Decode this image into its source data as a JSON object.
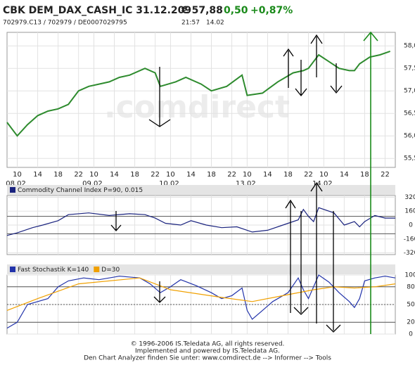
{
  "header": {
    "symbol": "CBK DEM_DAX_CASH_IC 31.12.209",
    "price": "€ 57,88",
    "change": "0,50",
    "change_pct": "+0,87%",
    "ids": "702979.C13 / 702979 / DE0007029795",
    "time": "21:57",
    "date": "14.02"
  },
  "watermark": ".comdirect",
  "footer": [
    "© 1996-2006 IS.Teledata AG, all rights reserved.",
    "Implemented and powered by IS.Teledata AG.",
    "Den Chart Analyzer finden Sie unter: www.comdirect.de --> Informer --> Tools"
  ],
  "chart_data": [
    {
      "type": "line",
      "xlim": [
        -2,
        74
      ],
      "ylim": [
        55.3,
        58.3
      ],
      "xticks": [
        {
          "value": 0,
          "label": "10"
        },
        {
          "value": 4,
          "label": "14"
        },
        {
          "value": 8,
          "label": "18"
        },
        {
          "value": 12,
          "label": "22"
        },
        {
          "value": 15,
          "label": "10"
        },
        {
          "value": 19,
          "label": "14"
        },
        {
          "value": 23,
          "label": "18"
        },
        {
          "value": 27,
          "label": "22"
        },
        {
          "value": 30,
          "label": "10"
        },
        {
          "value": 34,
          "label": "14"
        },
        {
          "value": 38,
          "label": "18"
        },
        {
          "value": 42,
          "label": "22"
        },
        {
          "value": 45,
          "label": "10"
        },
        {
          "value": 49,
          "label": "14"
        },
        {
          "value": 53,
          "label": "18"
        },
        {
          "value": 57,
          "label": "22"
        },
        {
          "value": 60,
          "label": "10"
        },
        {
          "value": 64,
          "label": "14"
        },
        {
          "value": 68,
          "label": "18"
        },
        {
          "value": 72,
          "label": "22"
        }
      ],
      "date_labels": [
        {
          "value": 0,
          "label": "08.02"
        },
        {
          "value": 15,
          "label": "09.02"
        },
        {
          "value": 30,
          "label": "10.02"
        },
        {
          "value": 45,
          "label": "13.02"
        },
        {
          "value": 60,
          "label": "14.02"
        }
      ],
      "yticks": [
        {
          "value": 58,
          "label": "58,0"
        },
        {
          "value": 57.5,
          "label": "57,5"
        },
        {
          "value": 57,
          "label": "57,0"
        },
        {
          "value": 56.5,
          "label": "56,5"
        },
        {
          "value": 56,
          "label": "56,0"
        },
        {
          "value": 55.5,
          "label": "55,5"
        }
      ],
      "series": [
        {
          "color": "#2e8b2e",
          "x": [
            -2,
            0,
            2,
            4,
            6,
            8,
            10,
            12,
            14,
            16,
            18,
            20,
            22,
            25,
            27,
            28,
            31,
            33,
            36,
            38,
            41,
            44,
            45,
            48,
            51,
            54,
            56,
            57,
            59,
            61,
            63,
            65,
            66,
            67,
            69,
            71,
            73
          ],
          "values": [
            56.3,
            56.0,
            56.25,
            56.45,
            56.55,
            56.6,
            56.7,
            57.0,
            57.1,
            57.15,
            57.2,
            57.3,
            57.35,
            57.5,
            57.4,
            57.1,
            57.2,
            57.3,
            57.15,
            57.0,
            57.1,
            57.35,
            56.9,
            56.95,
            57.2,
            57.4,
            57.45,
            57.5,
            57.8,
            57.65,
            57.5,
            57.45,
            57.45,
            57.6,
            57.75,
            57.8,
            57.88
          ]
        }
      ]
    },
    {
      "type": "line",
      "xlim": [
        -2,
        74
      ],
      "ylim": [
        -340,
        340
      ],
      "yticks": [
        320,
        160,
        0,
        -160,
        -320
      ],
      "hlines": [
        100,
        -100
      ],
      "series": [
        {
          "name": "Commodity Channel Index P=90, 0.015",
          "color": "#1a237e",
          "x": [
            -2,
            0,
            3,
            5,
            8,
            10,
            14,
            18,
            22,
            25,
            27,
            29,
            32,
            34,
            37,
            40,
            43,
            46,
            49,
            52,
            55,
            56,
            57,
            58,
            59,
            62,
            64,
            66,
            67,
            68,
            70,
            72,
            74
          ],
          "values": [
            -120,
            -90,
            -30,
            0,
            50,
            120,
            140,
            110,
            130,
            120,
            80,
            20,
            0,
            50,
            0,
            -30,
            -20,
            -80,
            -60,
            0,
            60,
            180,
            100,
            40,
            200,
            140,
            0,
            40,
            -20,
            40,
            110,
            80,
            80
          ]
        }
      ]
    },
    {
      "type": "line",
      "xlim": [
        -2,
        74
      ],
      "ylim": [
        0,
        100
      ],
      "yticks": [
        100,
        80,
        50,
        20,
        0
      ],
      "hlines": [
        80,
        50,
        20
      ],
      "series": [
        {
          "name": "Fast Stochastik K=140",
          "color": "#2233aa",
          "x": [
            -2,
            0,
            2,
            4,
            6,
            8,
            10,
            13,
            16,
            20,
            24,
            26,
            28,
            30,
            32,
            35,
            38,
            40,
            42,
            44,
            45,
            46,
            48,
            50,
            53,
            55,
            56,
            57,
            59,
            61,
            63,
            65,
            66,
            67,
            68,
            70,
            72,
            74
          ],
          "values": [
            10,
            20,
            50,
            55,
            60,
            80,
            90,
            95,
            92,
            98,
            95,
            85,
            70,
            80,
            92,
            82,
            70,
            60,
            65,
            78,
            40,
            25,
            40,
            55,
            70,
            95,
            75,
            60,
            100,
            88,
            70,
            55,
            45,
            60,
            90,
            95,
            98,
            95
          ]
        },
        {
          "name": "D=30",
          "color": "#f0a000",
          "x": [
            -2,
            4,
            12,
            24,
            30,
            40,
            46,
            52,
            58,
            62,
            66,
            70,
            74
          ],
          "values": [
            40,
            60,
            85,
            95,
            75,
            62,
            55,
            65,
            75,
            80,
            78,
            80,
            85
          ]
        }
      ]
    }
  ]
}
